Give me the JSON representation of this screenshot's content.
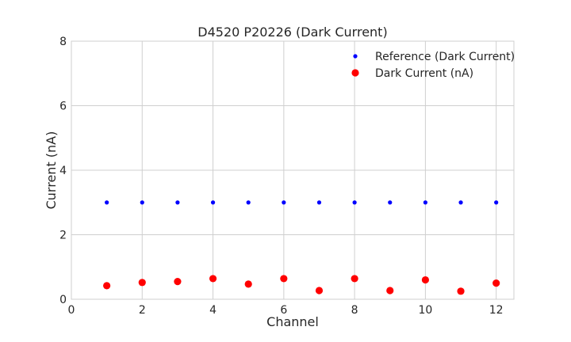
{
  "chart_data": {
    "type": "scatter",
    "title": "D4520 P20226 (Dark Current)",
    "xlabel": "Channel",
    "ylabel": "Current (nA)",
    "xlim": [
      0,
      12.5
    ],
    "ylim": [
      0,
      8
    ],
    "xticks": [
      0,
      2,
      4,
      6,
      8,
      10,
      12
    ],
    "yticks": [
      0,
      2,
      4,
      6,
      8
    ],
    "grid": true,
    "legend_position": "top-right",
    "series": [
      {
        "name": "Reference (Dark Current)",
        "color": "#0000ff",
        "x": [
          1,
          2,
          3,
          4,
          5,
          6,
          7,
          8,
          9,
          10,
          11,
          12
        ],
        "y": [
          3,
          3,
          3,
          3,
          3,
          3,
          3,
          3,
          3,
          3,
          3,
          3
        ]
      },
      {
        "name": "Dark Current (nA)",
        "color": "#ff0000",
        "x": [
          1,
          2,
          3,
          4,
          5,
          6,
          7,
          8,
          9,
          10,
          11,
          12
        ],
        "y": [
          0.42,
          0.52,
          0.55,
          0.64,
          0.47,
          0.64,
          0.27,
          0.64,
          0.27,
          0.6,
          0.25,
          0.5
        ]
      }
    ]
  }
}
